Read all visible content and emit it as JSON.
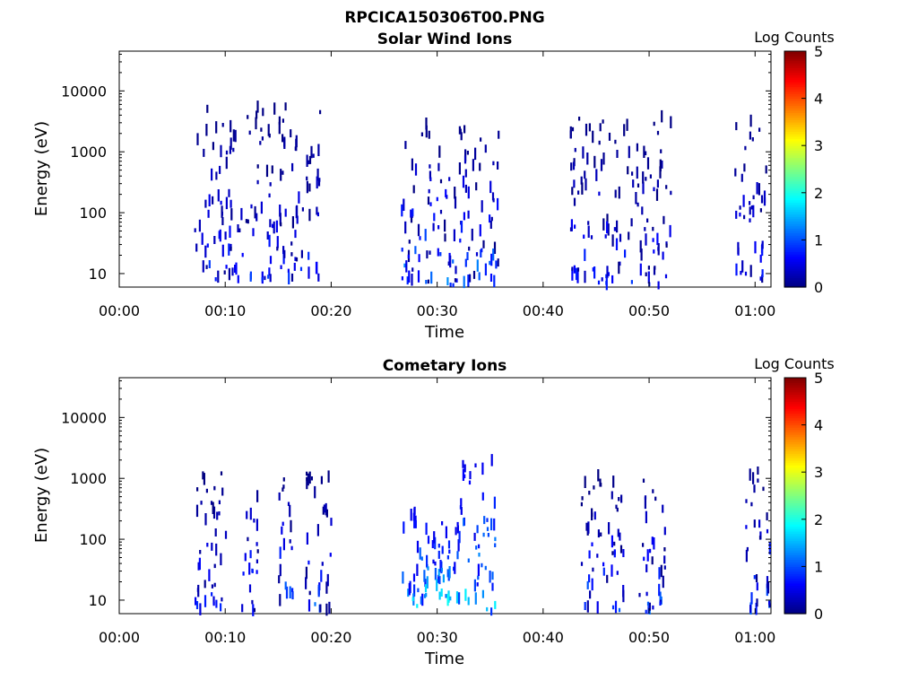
{
  "figure_title": "RPCICA150306T00.PNG",
  "chart_data": [
    {
      "type": "heatmap",
      "title": "Solar Wind Ions",
      "xlabel": "Time",
      "ylabel": "Energy (eV)",
      "x_ticks": [
        "00:00",
        "00:10",
        "00:20",
        "00:30",
        "00:40",
        "00:50",
        "01:00"
      ],
      "x_tick_minutes": [
        0,
        10,
        20,
        30,
        40,
        50,
        60
      ],
      "xlim_minutes": [
        0,
        61.5
      ],
      "y_scale": "log",
      "y_ticks": [
        "10",
        "100",
        "1000",
        "10000"
      ],
      "y_tick_values": [
        10,
        100,
        1000,
        10000
      ],
      "ylim": [
        6,
        45000
      ],
      "colorbar": {
        "label": "Log Counts",
        "range": [
          0,
          5
        ],
        "ticks": [
          "0",
          "1",
          "2",
          "3",
          "4",
          "5"
        ],
        "colormap": "jet"
      },
      "bursts": [
        {
          "t": [
            7,
            19
          ],
          "energy": [
            8,
            6000
          ],
          "log_counts": [
            0,
            1
          ]
        },
        {
          "t": [
            26.5,
            36
          ],
          "energy": [
            6,
            3000
          ],
          "log_counts": [
            0,
            1.5
          ]
        },
        {
          "t": [
            42.5,
            52
          ],
          "energy": [
            6,
            4000
          ],
          "log_counts": [
            0,
            1
          ]
        },
        {
          "t": [
            58,
            61
          ],
          "energy": [
            8,
            4000
          ],
          "log_counts": [
            0,
            1
          ]
        }
      ]
    },
    {
      "type": "heatmap",
      "title": "Cometary Ions",
      "xlabel": "Time",
      "ylabel": "Energy (eV)",
      "x_ticks": [
        "00:00",
        "00:10",
        "00:20",
        "00:30",
        "00:40",
        "00:50",
        "01:00"
      ],
      "x_tick_minutes": [
        0,
        10,
        20,
        30,
        40,
        50,
        60
      ],
      "xlim_minutes": [
        0,
        61.5
      ],
      "y_scale": "log",
      "y_ticks": [
        "10",
        "100",
        "1000",
        "10000"
      ],
      "y_tick_values": [
        10,
        100,
        1000,
        10000
      ],
      "ylim": [
        6,
        45000
      ],
      "colorbar": {
        "label": "Log Counts",
        "range": [
          0,
          5
        ],
        "ticks": [
          "0",
          "1",
          "2",
          "3",
          "4",
          "5"
        ],
        "colormap": "jet"
      },
      "bursts": [
        {
          "t": [
            7,
            10
          ],
          "energy": [
            6,
            1300
          ],
          "log_counts": [
            0,
            1
          ]
        },
        {
          "t": [
            11.5,
            13
          ],
          "energy": [
            6,
            1300
          ],
          "log_counts": [
            0,
            1.3
          ]
        },
        {
          "t": [
            14.8,
            16.3
          ],
          "energy": [
            10,
            1300
          ],
          "log_counts": [
            0,
            1.3
          ]
        },
        {
          "t": [
            17.5,
            20
          ],
          "energy": [
            6,
            1300
          ],
          "log_counts": [
            0,
            1.3
          ]
        },
        {
          "t": [
            26.5,
            29
          ],
          "energy": [
            8,
            300
          ],
          "log_counts": [
            0.5,
            2
          ]
        },
        {
          "t": [
            29,
            32
          ],
          "energy": [
            10,
            200
          ],
          "log_counts": [
            0.5,
            2
          ]
        },
        {
          "t": [
            32,
            35.5
          ],
          "energy": [
            6,
            2000
          ],
          "log_counts": [
            0.5,
            2
          ]
        },
        {
          "t": [
            43.5,
            47.5
          ],
          "energy": [
            6,
            1300
          ],
          "log_counts": [
            0,
            1.3
          ]
        },
        {
          "t": [
            49,
            51.5
          ],
          "energy": [
            6,
            1300
          ],
          "log_counts": [
            0,
            1.3
          ]
        },
        {
          "t": [
            59,
            61.5
          ],
          "energy": [
            6,
            1800
          ],
          "log_counts": [
            0,
            1.3
          ]
        }
      ]
    }
  ]
}
